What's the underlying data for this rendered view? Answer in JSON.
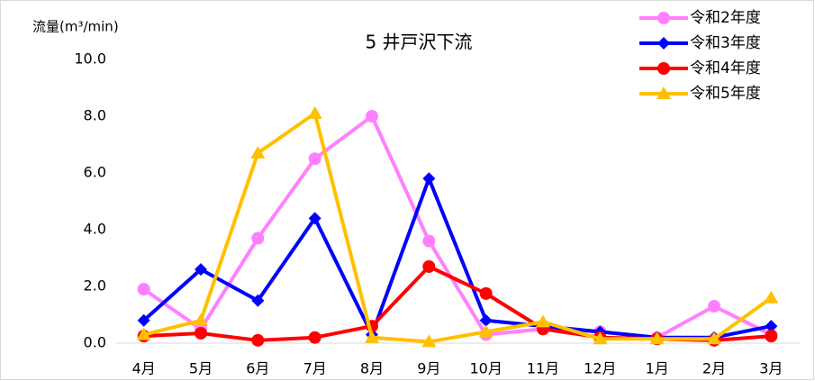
{
  "chart_data": {
    "type": "line",
    "title": "5 井戸沢下流",
    "y_label": "流量(m³/min)",
    "categories": [
      "4月",
      "5月",
      "6月",
      "7月",
      "8月",
      "9月",
      "10月",
      "11月",
      "12月",
      "1月",
      "2月",
      "3月"
    ],
    "series": [
      {
        "name": "令和2年度",
        "color": "#ff80ff",
        "marker": "circle",
        "values": [
          1.9,
          0.5,
          3.7,
          6.5,
          8.0,
          3.6,
          0.3,
          0.5,
          0.4,
          0.2,
          1.3,
          0.3
        ]
      },
      {
        "name": "令和3年度",
        "color": "#0000ff",
        "marker": "diamond",
        "values": [
          0.8,
          2.6,
          1.5,
          4.4,
          0.3,
          5.8,
          0.8,
          0.6,
          0.4,
          0.2,
          0.2,
          0.6
        ]
      },
      {
        "name": "令和4年度",
        "color": "#ff0000",
        "marker": "circle",
        "values": [
          0.25,
          0.35,
          0.1,
          0.2,
          0.6,
          2.7,
          1.75,
          0.5,
          0.2,
          0.15,
          0.1,
          0.25
        ]
      },
      {
        "name": "令和5年度",
        "color": "#ffc000",
        "marker": "triangle",
        "values": [
          0.3,
          0.8,
          6.7,
          8.1,
          0.2,
          0.05,
          0.4,
          0.75,
          0.15,
          0.15,
          0.15,
          1.6
        ]
      }
    ],
    "ylim": [
      0,
      10
    ],
    "yticks": [
      {
        "value": 0,
        "label": "0.0"
      },
      {
        "value": 2,
        "label": "2.0"
      },
      {
        "value": 4,
        "label": "4.0"
      },
      {
        "value": 6,
        "label": "6.0"
      },
      {
        "value": 8,
        "label": "8.0"
      },
      {
        "value": 10,
        "label": "10.0"
      }
    ],
    "grid": false,
    "legend": "upper right"
  }
}
